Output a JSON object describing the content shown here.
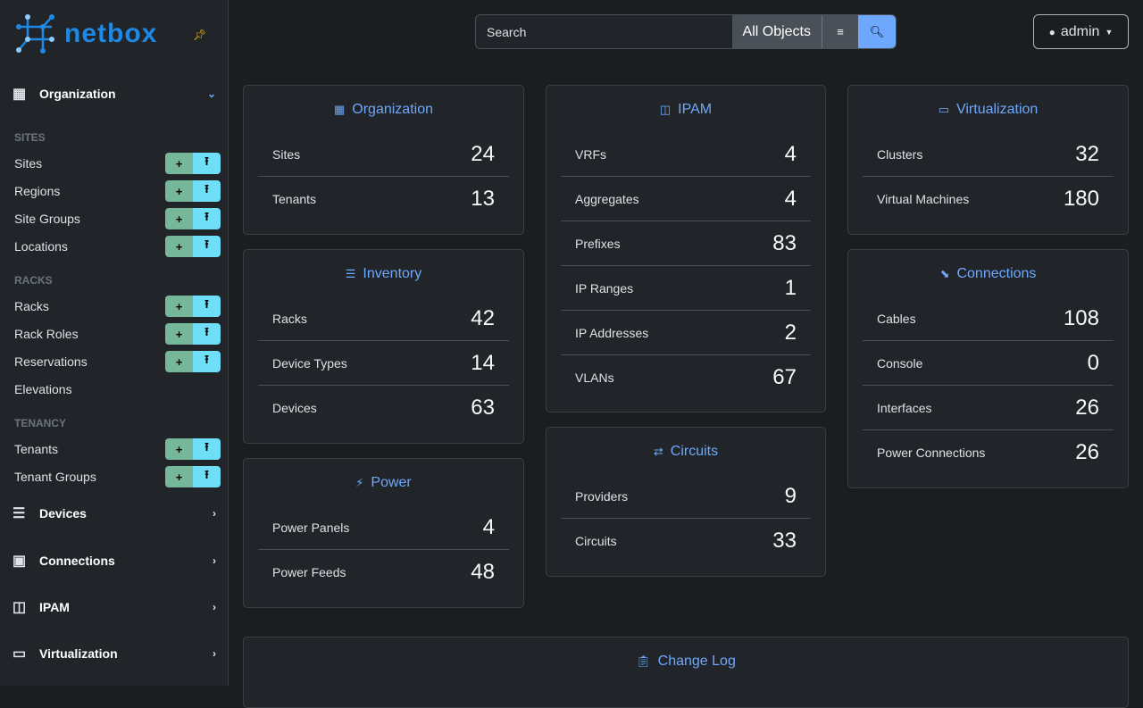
{
  "brand": {
    "name": "netbox",
    "accent": "#1e88e5"
  },
  "search": {
    "placeholder": "Search",
    "scope": "All Objects"
  },
  "user": {
    "name": "admin"
  },
  "sidebar": {
    "organization": {
      "label": "Organization",
      "groups": [
        {
          "label": "SITES",
          "items": [
            {
              "label": "Sites",
              "buttons": true
            },
            {
              "label": "Regions",
              "buttons": true
            },
            {
              "label": "Site Groups",
              "buttons": true
            },
            {
              "label": "Locations",
              "buttons": true
            }
          ]
        },
        {
          "label": "RACKS",
          "items": [
            {
              "label": "Racks",
              "buttons": true
            },
            {
              "label": "Rack Roles",
              "buttons": true
            },
            {
              "label": "Reservations",
              "buttons": true
            },
            {
              "label": "Elevations",
              "buttons": false
            }
          ]
        },
        {
          "label": "TENANCY",
          "items": [
            {
              "label": "Tenants",
              "buttons": true
            },
            {
              "label": "Tenant Groups",
              "buttons": true
            }
          ]
        }
      ]
    },
    "sections": [
      {
        "label": "Devices",
        "icon": "server-icon"
      },
      {
        "label": "Connections",
        "icon": "ethernet-icon"
      },
      {
        "label": "IPAM",
        "icon": "ipam-icon"
      },
      {
        "label": "Virtualization",
        "icon": "monitor-icon"
      }
    ],
    "add_symbol": "+",
    "import_symbol": "⭱"
  },
  "cards": [
    {
      "title": "Organization",
      "icon": "domain-icon",
      "rows": [
        {
          "label": "Sites",
          "count": "24"
        },
        {
          "label": "Tenants",
          "count": "13"
        }
      ]
    },
    {
      "title": "Inventory",
      "icon": "server-icon",
      "rows": [
        {
          "label": "Racks",
          "count": "42"
        },
        {
          "label": "Device Types",
          "count": "14"
        },
        {
          "label": "Devices",
          "count": "63"
        }
      ]
    },
    {
      "title": "Power",
      "icon": "flash-icon",
      "rows": [
        {
          "label": "Power Panels",
          "count": "4"
        },
        {
          "label": "Power Feeds",
          "count": "48"
        }
      ]
    },
    {
      "title": "IPAM",
      "icon": "ipam-icon",
      "rows": [
        {
          "label": "VRFs",
          "count": "4"
        },
        {
          "label": "Aggregates",
          "count": "4"
        },
        {
          "label": "Prefixes",
          "count": "83"
        },
        {
          "label": "IP Ranges",
          "count": "1"
        },
        {
          "label": "IP Addresses",
          "count": "2"
        },
        {
          "label": "VLANs",
          "count": "67"
        }
      ]
    },
    {
      "title": "Circuits",
      "icon": "transit-icon",
      "rows": [
        {
          "label": "Providers",
          "count": "9"
        },
        {
          "label": "Circuits",
          "count": "33"
        }
      ]
    },
    {
      "title": "Virtualization",
      "icon": "monitor-icon",
      "rows": [
        {
          "label": "Clusters",
          "count": "32"
        },
        {
          "label": "Virtual Machines",
          "count": "180"
        }
      ]
    },
    {
      "title": "Connections",
      "icon": "cable-icon",
      "rows": [
        {
          "label": "Cables",
          "count": "108"
        },
        {
          "label": "Console",
          "count": "0"
        },
        {
          "label": "Interfaces",
          "count": "26"
        },
        {
          "label": "Power Connections",
          "count": "26"
        }
      ]
    },
    {
      "title": "Change Log",
      "icon": "clipboard-clock-icon",
      "rows": []
    }
  ]
}
